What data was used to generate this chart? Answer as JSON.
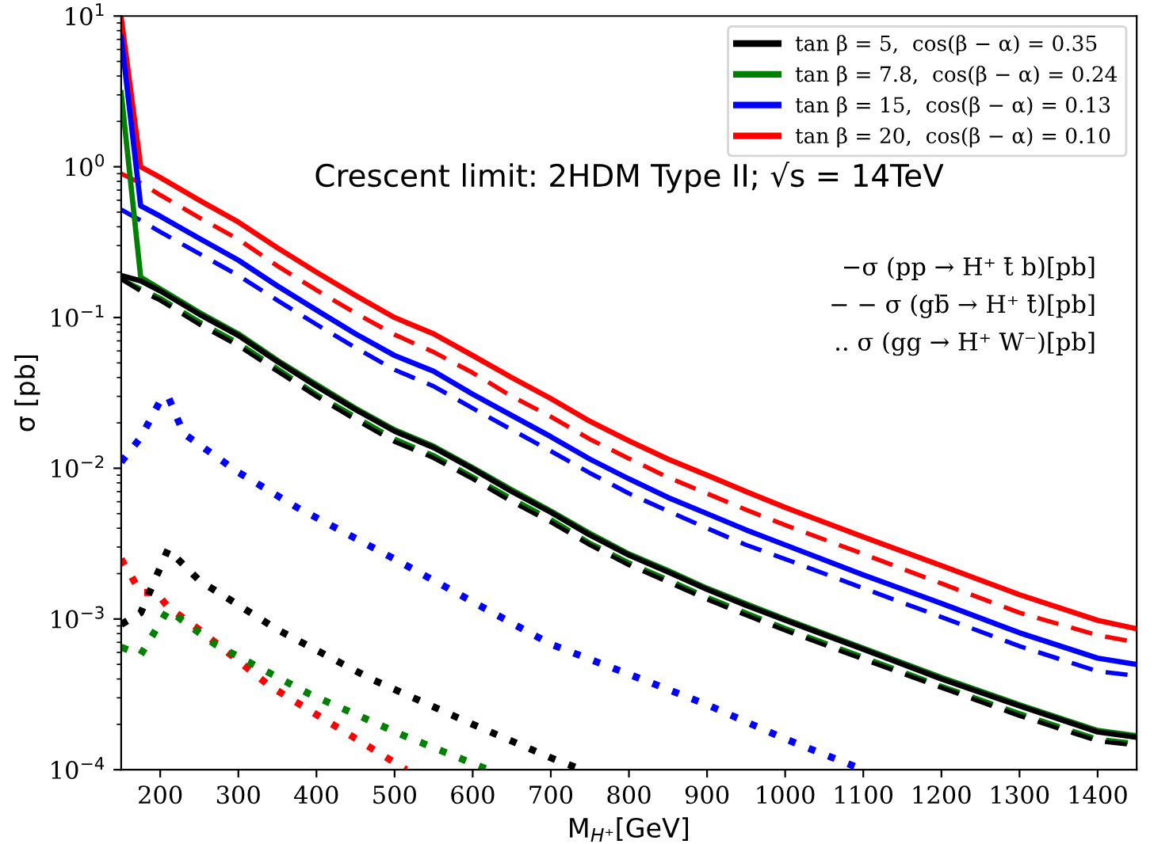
{
  "chart_data": {
    "type": "line",
    "xlabel": "M$_{H⁺}$[GeV]",
    "ylabel": "σ [pb]",
    "log": "y",
    "grid": false,
    "legend": "top right",
    "xlim": [
      150,
      1450
    ],
    "xticks": [
      200,
      300,
      400,
      500,
      600,
      700,
      800,
      900,
      1000,
      1100,
      1200,
      1300,
      1400
    ],
    "ylim": [
      0.0001,
      10
    ],
    "yticks": [
      {
        "value": 0.0001,
        "label": "10$^{−4}$"
      },
      {
        "value": 0.001,
        "label": "10$^{−3}$"
      },
      {
        "value": 0.01,
        "label": "10$^{−2}$"
      },
      {
        "value": 0.1,
        "label": "10$^{−1}$"
      },
      {
        "value": 1,
        "label": "10$^{0}$"
      },
      {
        "value": 10,
        "label": "10$^{1}$"
      }
    ],
    "annotations": [
      "Crescent limit: 2HDM Type II; √s = 14TeV",
      "−σ (pp → H⁺ t̄ b)[pb]",
      "− − σ (gb̄ → H⁺ t̄)[pb]",
      ".. σ (gg → H⁺ W⁻)[pb]"
    ],
    "series": [
      {
        "name": "tan β = 5,  cos(β − α) = 0.35",
        "color": "#000000",
        "line_style": "solid",
        "x": [
          150,
          175,
          200,
          250,
          300,
          350,
          400,
          450,
          500,
          550,
          600,
          650,
          700,
          750,
          800,
          850,
          900,
          950,
          1000,
          1100,
          1200,
          1300,
          1400,
          1450
        ],
        "values": [
          0.19,
          0.175,
          0.15,
          0.105,
          0.076,
          0.051,
          0.035,
          0.0245,
          0.0176,
          0.0137,
          0.0099,
          0.007,
          0.0051,
          0.0036,
          0.00265,
          0.00205,
          0.00157,
          0.00123,
          0.00098,
          0.00063,
          0.0004,
          0.000265,
          0.000178,
          0.000164
        ]
      },
      {
        "name": "tan β = 7.8,  cos(β − α) = 0.24",
        "color": "#008000",
        "line_style": "solid",
        "x": [
          150,
          175,
          200,
          250,
          300,
          350,
          400,
          450,
          500,
          550,
          600,
          650,
          700,
          750,
          800,
          850,
          900,
          950,
          1000,
          1100,
          1200,
          1300,
          1400,
          1450
        ],
        "values": [
          3.1,
          0.185,
          0.155,
          0.108,
          0.078,
          0.052,
          0.036,
          0.025,
          0.018,
          0.014,
          0.0101,
          0.0072,
          0.0052,
          0.0037,
          0.0027,
          0.0021,
          0.0016,
          0.00126,
          0.001,
          0.00064,
          0.00041,
          0.00027,
          0.000182,
          0.000168
        ]
      },
      {
        "name": "tan β = 15,  cos(β − α) = 0.13",
        "color": "#0000ff",
        "line_style": "solid",
        "x": [
          150,
          175,
          200,
          250,
          300,
          350,
          400,
          450,
          500,
          550,
          600,
          650,
          700,
          750,
          800,
          850,
          900,
          950,
          1000,
          1100,
          1200,
          1300,
          1400,
          1450
        ],
        "values": [
          7.3,
          0.55,
          0.47,
          0.335,
          0.24,
          0.162,
          0.112,
          0.078,
          0.056,
          0.044,
          0.031,
          0.0224,
          0.0162,
          0.0115,
          0.0085,
          0.0064,
          0.005,
          0.0039,
          0.0031,
          0.00196,
          0.00127,
          0.00081,
          0.00055,
          0.0005
        ]
      },
      {
        "name": "tan β = 20,  cos(β − α) = 0.10",
        "color": "#ff0000",
        "line_style": "solid",
        "x": [
          150,
          175,
          200,
          250,
          300,
          350,
          400,
          450,
          500,
          550,
          600,
          650,
          700,
          750,
          800,
          850,
          900,
          950,
          1000,
          1100,
          1200,
          1300,
          1400,
          1450
        ],
        "values": [
          9.8,
          1.0,
          0.85,
          0.6,
          0.43,
          0.29,
          0.2,
          0.14,
          0.1,
          0.078,
          0.056,
          0.04,
          0.029,
          0.0205,
          0.0152,
          0.0115,
          0.009,
          0.007,
          0.0055,
          0.0035,
          0.00226,
          0.00145,
          0.00098,
          0.00086
        ]
      },
      {
        "color": "#000000",
        "line_style": "dashed",
        "x": [
          150,
          175,
          200,
          250,
          300,
          350,
          400,
          450,
          500,
          550,
          600,
          650,
          700,
          750,
          800,
          850,
          900,
          950,
          1000,
          1100,
          1200,
          1300,
          1400,
          1450
        ],
        "values": [
          0.18,
          0.15,
          0.13,
          0.09,
          0.065,
          0.044,
          0.03,
          0.021,
          0.015,
          0.0117,
          0.0085,
          0.006,
          0.0044,
          0.0031,
          0.00228,
          0.00176,
          0.00135,
          0.00106,
          0.00084,
          0.00054,
          0.00035,
          0.000228,
          0.000155,
          0.000145
        ]
      },
      {
        "color": "#008000",
        "line_style": "dashed",
        "x": [
          150,
          175,
          200,
          250,
          300,
          350,
          400,
          450,
          500,
          550,
          600,
          650,
          700,
          750,
          800,
          850,
          900,
          950,
          1000,
          1100,
          1200,
          1300,
          1400,
          1450
        ],
        "values": [
          0.18,
          0.155,
          0.135,
          0.094,
          0.068,
          0.046,
          0.031,
          0.022,
          0.0157,
          0.0122,
          0.0088,
          0.0063,
          0.0046,
          0.0032,
          0.00237,
          0.00183,
          0.0014,
          0.0011,
          0.00087,
          0.00056,
          0.00036,
          0.000237,
          0.00016,
          0.00015
        ]
      },
      {
        "color": "#0000ff",
        "line_style": "dashed",
        "x": [
          150,
          175,
          200,
          250,
          300,
          350,
          400,
          450,
          500,
          550,
          600,
          650,
          700,
          750,
          800,
          850,
          900,
          950,
          1000,
          1100,
          1200,
          1300,
          1400,
          1450
        ],
        "values": [
          0.52,
          0.44,
          0.37,
          0.265,
          0.19,
          0.13,
          0.09,
          0.063,
          0.045,
          0.035,
          0.025,
          0.018,
          0.013,
          0.0093,
          0.0068,
          0.0052,
          0.004,
          0.0031,
          0.0025,
          0.0016,
          0.00103,
          0.00066,
          0.00045,
          0.00042
        ]
      },
      {
        "color": "#ff0000",
        "line_style": "dashed",
        "x": [
          150,
          175,
          200,
          250,
          300,
          350,
          400,
          450,
          500,
          550,
          600,
          650,
          700,
          750,
          800,
          850,
          900,
          950,
          1000,
          1100,
          1200,
          1300,
          1400,
          1450
        ],
        "values": [
          0.9,
          0.78,
          0.65,
          0.46,
          0.33,
          0.22,
          0.152,
          0.107,
          0.077,
          0.059,
          0.043,
          0.03,
          0.022,
          0.0156,
          0.0116,
          0.0087,
          0.0068,
          0.0053,
          0.0042,
          0.0027,
          0.00172,
          0.0011,
          0.00078,
          0.0007
        ]
      },
      {
        "color": "#000000",
        "line_style": "dotted",
        "x": [
          150,
          175,
          210,
          250,
          350,
          470,
          600,
          700,
          740
        ],
        "values": [
          0.00092,
          0.0011,
          0.0029,
          0.0018,
          0.00085,
          0.0004,
          0.0002,
          0.00012,
          0.0001
        ]
      },
      {
        "color": "#008000",
        "line_style": "dotted",
        "x": [
          150,
          175,
          210,
          270,
          390,
          510,
          620
        ],
        "values": [
          0.00065,
          0.00058,
          0.00115,
          0.00068,
          0.00032,
          0.00017,
          0.0001
        ]
      },
      {
        "color": "#0000ff",
        "line_style": "dotted",
        "x": [
          150,
          175,
          200,
          210,
          230,
          300,
          375,
          500,
          600,
          700,
          800,
          900,
          1000,
          1100
        ],
        "values": [
          0.011,
          0.016,
          0.028,
          0.03,
          0.017,
          0.0094,
          0.0055,
          0.0025,
          0.0013,
          0.00068,
          0.00043,
          0.00027,
          0.00016,
          0.0001
        ]
      },
      {
        "color": "#ff0000",
        "line_style": "dotted",
        "x": [
          150,
          175,
          195,
          210,
          250,
          340,
          460,
          515
        ],
        "values": [
          0.0025,
          0.0015,
          0.0015,
          0.0012,
          0.00085,
          0.00036,
          0.00015,
          0.0001
        ]
      }
    ]
  }
}
